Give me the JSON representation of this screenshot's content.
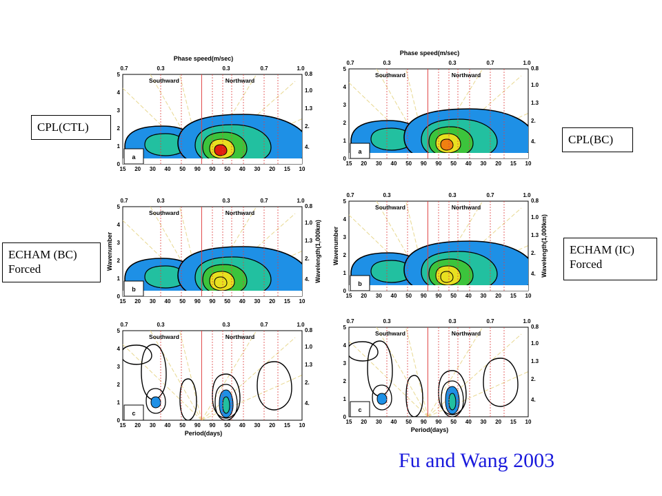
{
  "citation": "Fu and Wang 2003",
  "labels": {
    "cpl_ctl": "CPL(CTL)",
    "cpl_bc": "CPL(BC)",
    "echam_bc": [
      "ECHAM  (BC)",
      "Forced"
    ],
    "echam_ic": [
      "ECHAM  (IC)",
      "Forced"
    ]
  },
  "axes": {
    "phase_speed_title": "Phase speed(m/sec)",
    "period_title": "Period(days)",
    "wavenumber_title": "Wavenumber",
    "wavelength_title": "Wavelength(1,000km)",
    "southward": "Southward",
    "northward": "Northward",
    "top_ticks": [
      "0.7",
      "0.3",
      "0.3",
      "0.7",
      "1.0"
    ],
    "bottom_ticks": [
      "15",
      "20",
      "30",
      "40",
      "50",
      "90",
      "90",
      "50",
      "40",
      "30",
      "20",
      "15",
      "10"
    ],
    "left_ticks": [
      "0",
      "1",
      "2",
      "3",
      "4",
      "5"
    ],
    "right_ticks": [
      "0.8",
      "1.0",
      "1.3",
      "2.",
      "4."
    ]
  },
  "colors": {
    "fill_outer": "#1e90e6",
    "fill_mid": "#22c0a0",
    "fill_green": "#3cc43c",
    "fill_yellow": "#e8e020",
    "fill_orange": "#f08010",
    "fill_red": "#e02010",
    "guide_yellow": "#e8d890",
    "guide_red": "#e04040",
    "citation": "#1a1adc"
  },
  "panels": [
    {
      "id": "left-a",
      "letter": "a",
      "type": "spectrum",
      "peak": "red",
      "show_top_title": true,
      "show_bottom_title": false,
      "show_side_titles": false
    },
    {
      "id": "right-a",
      "letter": "a",
      "type": "spectrum",
      "peak": "orange",
      "show_top_title": true,
      "show_bottom_title": false,
      "show_side_titles": false
    },
    {
      "id": "left-b",
      "letter": "b",
      "type": "spectrum",
      "peak": "yellow",
      "show_top_title": false,
      "show_bottom_title": false,
      "show_side_titles": true
    },
    {
      "id": "right-b",
      "letter": "b",
      "type": "spectrum",
      "peak": "yellow",
      "show_top_title": false,
      "show_bottom_title": false,
      "show_side_titles": true
    },
    {
      "id": "left-c",
      "letter": "c",
      "type": "difference",
      "show_top_title": false,
      "show_bottom_title": true,
      "show_side_titles": false
    },
    {
      "id": "right-c",
      "letter": "c",
      "type": "difference",
      "show_top_title": false,
      "show_bottom_title": true,
      "show_side_titles": false
    }
  ]
}
